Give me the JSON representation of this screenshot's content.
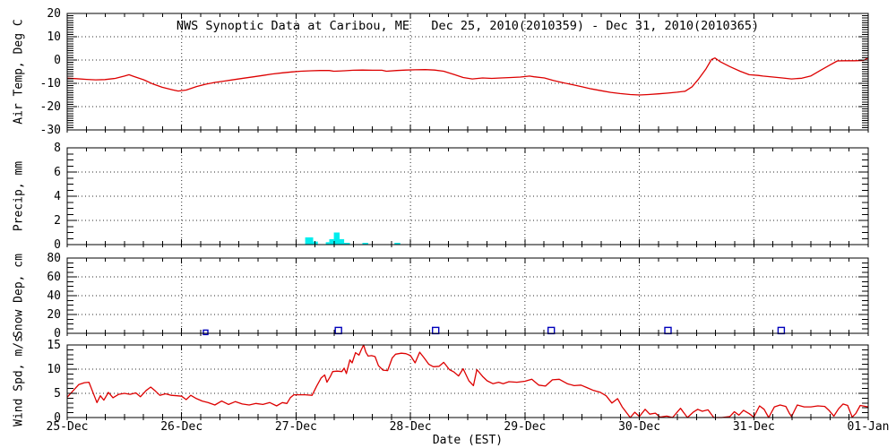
{
  "title": "NWS Synoptic Data at Caribou, ME   Dec 25, 2010(2010359) - Dec 31, 2010(2010365)",
  "x_axis": {
    "title": "Date (EST)",
    "labels": [
      "25-Dec",
      "26-Dec",
      "27-Dec",
      "28-Dec",
      "29-Dec",
      "30-Dec",
      "31-Dec",
      "01-Jan"
    ],
    "days": 7,
    "minor_ticks_per_day": 6
  },
  "chart_data": [
    {
      "type": "line",
      "name": "air-temp",
      "ylabel": "Air Temp, Deg C",
      "ylim": [
        -30,
        20
      ],
      "yticks": [
        -30,
        -20,
        -10,
        0,
        10,
        20
      ],
      "minor": 1,
      "grid": [
        -20,
        -10,
        0,
        10
      ],
      "color": "#dd0000",
      "points": [
        [
          0,
          -7.8
        ],
        [
          0.08,
          -8
        ],
        [
          0.17,
          -8.3
        ],
        [
          0.25,
          -8.5
        ],
        [
          0.33,
          -8.4
        ],
        [
          0.42,
          -7.9
        ],
        [
          0.5,
          -6.9
        ],
        [
          0.54,
          -6.3
        ],
        [
          0.58,
          -7
        ],
        [
          0.67,
          -8.5
        ],
        [
          0.75,
          -10.3
        ],
        [
          0.83,
          -11.7
        ],
        [
          0.92,
          -12.8
        ],
        [
          0.97,
          -13.3
        ],
        [
          1.04,
          -12.9
        ],
        [
          1.13,
          -11.4
        ],
        [
          1.21,
          -10.4
        ],
        [
          1.29,
          -9.6
        ],
        [
          1.38,
          -9
        ],
        [
          1.46,
          -8.4
        ],
        [
          1.54,
          -7.8
        ],
        [
          1.63,
          -7.2
        ],
        [
          1.71,
          -6.6
        ],
        [
          1.79,
          -6
        ],
        [
          1.88,
          -5.5
        ],
        [
          1.96,
          -5.1
        ],
        [
          2.04,
          -4.8
        ],
        [
          2.13,
          -4.6
        ],
        [
          2.21,
          -4.5
        ],
        [
          2.29,
          -4.5
        ],
        [
          2.33,
          -4.8
        ],
        [
          2.42,
          -4.6
        ],
        [
          2.5,
          -4.4
        ],
        [
          2.58,
          -4.3
        ],
        [
          2.67,
          -4.4
        ],
        [
          2.75,
          -4.4
        ],
        [
          2.79,
          -4.8
        ],
        [
          2.88,
          -4.5
        ],
        [
          2.96,
          -4.3
        ],
        [
          3.04,
          -4.2
        ],
        [
          3.13,
          -4.1
        ],
        [
          3.21,
          -4.3
        ],
        [
          3.29,
          -4.8
        ],
        [
          3.38,
          -6.2
        ],
        [
          3.46,
          -7.5
        ],
        [
          3.54,
          -8.1
        ],
        [
          3.63,
          -7.7
        ],
        [
          3.71,
          -7.9
        ],
        [
          3.79,
          -7.7
        ],
        [
          3.88,
          -7.5
        ],
        [
          3.96,
          -7.3
        ],
        [
          4.04,
          -6.9
        ],
        [
          4.08,
          -7.2
        ],
        [
          4.17,
          -7.7
        ],
        [
          4.25,
          -8.8
        ],
        [
          4.33,
          -9.7
        ],
        [
          4.42,
          -10.6
        ],
        [
          4.5,
          -11.5
        ],
        [
          4.58,
          -12.4
        ],
        [
          4.67,
          -13.2
        ],
        [
          4.75,
          -13.9
        ],
        [
          4.83,
          -14.4
        ],
        [
          4.92,
          -14.8
        ],
        [
          5,
          -15
        ],
        [
          5.08,
          -14.8
        ],
        [
          5.17,
          -14.5
        ],
        [
          5.25,
          -14.2
        ],
        [
          5.33,
          -13.8
        ],
        [
          5.4,
          -13.4
        ],
        [
          5.46,
          -11.5
        ],
        [
          5.52,
          -8
        ],
        [
          5.58,
          -4
        ],
        [
          5.63,
          0.2
        ],
        [
          5.66,
          0.9
        ],
        [
          5.71,
          -0.8
        ],
        [
          5.79,
          -2.8
        ],
        [
          5.88,
          -4.8
        ],
        [
          5.96,
          -6.3
        ],
        [
          6.04,
          -6.6
        ],
        [
          6.08,
          -6.9
        ],
        [
          6.17,
          -7.3
        ],
        [
          6.25,
          -7.7
        ],
        [
          6.33,
          -8.1
        ],
        [
          6.42,
          -7.8
        ],
        [
          6.5,
          -6.8
        ],
        [
          6.58,
          -4.5
        ],
        [
          6.67,
          -2
        ],
        [
          6.73,
          -0.4
        ],
        [
          6.79,
          -0.3
        ],
        [
          6.88,
          -0.3
        ],
        [
          6.96,
          -0.2
        ],
        [
          7,
          1
        ]
      ]
    },
    {
      "type": "bar",
      "name": "precip",
      "ylabel": "Precip, mm",
      "ylim": [
        0,
        8
      ],
      "yticks": [
        0,
        2,
        4,
        6,
        8
      ],
      "minor": 0.5,
      "grid": [
        2,
        4,
        6
      ],
      "color": "#00eded",
      "bars": [
        [
          2.08,
          2.15,
          0.6
        ],
        [
          2.15,
          2.19,
          0.25
        ],
        [
          2.26,
          2.29,
          0.2
        ],
        [
          2.29,
          2.33,
          0.45
        ],
        [
          2.33,
          2.38,
          1.0
        ],
        [
          2.38,
          2.42,
          0.45
        ],
        [
          2.42,
          2.47,
          0.15
        ],
        [
          2.58,
          2.63,
          0.15
        ],
        [
          2.86,
          2.91,
          0.15
        ]
      ]
    },
    {
      "type": "scatter",
      "name": "snow-depth",
      "ylabel": "Snow Dep, cm",
      "ylim": [
        0,
        80
      ],
      "yticks": [
        0,
        20,
        40,
        60,
        80
      ],
      "minor": 5,
      "grid": [
        20,
        40,
        60
      ],
      "color": "#0000bb",
      "points": [
        [
          1.21,
          1,
          5
        ],
        [
          2.37,
          3,
          7
        ],
        [
          3.22,
          3,
          7
        ],
        [
          4.23,
          3,
          7
        ],
        [
          5.25,
          3,
          7
        ],
        [
          6.24,
          3,
          7
        ]
      ]
    },
    {
      "type": "line",
      "name": "wind-speed",
      "ylabel": "Wind Spd, m/s",
      "ylim": [
        0,
        15
      ],
      "yticks": [
        0,
        5,
        10,
        15
      ],
      "minor": 1,
      "grid": [
        5,
        10
      ],
      "color": "#dd0000",
      "points": [
        [
          0,
          4.2
        ],
        [
          0.05,
          5.5
        ],
        [
          0.1,
          6.8
        ],
        [
          0.15,
          7.2
        ],
        [
          0.19,
          7.3
        ],
        [
          0.22,
          5.5
        ],
        [
          0.26,
          3.1
        ],
        [
          0.29,
          4.5
        ],
        [
          0.32,
          3.6
        ],
        [
          0.36,
          5.2
        ],
        [
          0.4,
          4.1
        ],
        [
          0.45,
          4.8
        ],
        [
          0.5,
          5
        ],
        [
          0.55,
          4.8
        ],
        [
          0.6,
          5.1
        ],
        [
          0.64,
          4.3
        ],
        [
          0.69,
          5.6
        ],
        [
          0.73,
          6.3
        ],
        [
          0.77,
          5.5
        ],
        [
          0.81,
          4.6
        ],
        [
          0.86,
          4.9
        ],
        [
          0.91,
          4.6
        ],
        [
          0.96,
          4.5
        ],
        [
          1,
          4.4
        ],
        [
          1.04,
          3.7
        ],
        [
          1.08,
          4.6
        ],
        [
          1.13,
          3.9
        ],
        [
          1.18,
          3.4
        ],
        [
          1.23,
          3.1
        ],
        [
          1.29,
          2.6
        ],
        [
          1.35,
          3.4
        ],
        [
          1.41,
          2.7
        ],
        [
          1.47,
          3.3
        ],
        [
          1.53,
          2.8
        ],
        [
          1.59,
          2.6
        ],
        [
          1.65,
          2.9
        ],
        [
          1.71,
          2.7
        ],
        [
          1.77,
          3.1
        ],
        [
          1.83,
          2.4
        ],
        [
          1.88,
          3.1
        ],
        [
          1.92,
          2.9
        ],
        [
          1.95,
          4.1
        ],
        [
          1.98,
          4.7
        ],
        [
          2.08,
          4.7
        ],
        [
          2.14,
          4.6
        ],
        [
          2.18,
          6.5
        ],
        [
          2.22,
          8.2
        ],
        [
          2.25,
          8.8
        ],
        [
          2.27,
          7.3
        ],
        [
          2.3,
          8.5
        ],
        [
          2.32,
          9.5
        ],
        [
          2.36,
          9.6
        ],
        [
          2.4,
          9.5
        ],
        [
          2.42,
          10.2
        ],
        [
          2.44,
          9.1
        ],
        [
          2.47,
          11.9
        ],
        [
          2.49,
          11.3
        ],
        [
          2.52,
          13.4
        ],
        [
          2.55,
          12.9
        ],
        [
          2.57,
          14
        ],
        [
          2.59,
          15
        ],
        [
          2.61,
          13.5
        ],
        [
          2.63,
          12.7
        ],
        [
          2.66,
          12.8
        ],
        [
          2.69,
          12.6
        ],
        [
          2.72,
          10.7
        ],
        [
          2.76,
          9.8
        ],
        [
          2.8,
          9.7
        ],
        [
          2.84,
          12.3
        ],
        [
          2.87,
          13.1
        ],
        [
          2.92,
          13.3
        ],
        [
          2.96,
          13.2
        ],
        [
          3,
          12.8
        ],
        [
          3.04,
          11.3
        ],
        [
          3.08,
          13.5
        ],
        [
          3.12,
          12.3
        ],
        [
          3.16,
          11
        ],
        [
          3.2,
          10.5
        ],
        [
          3.25,
          10.6
        ],
        [
          3.29,
          11.4
        ],
        [
          3.34,
          9.9
        ],
        [
          3.38,
          9.4
        ],
        [
          3.42,
          8.6
        ],
        [
          3.46,
          10.1
        ],
        [
          3.51,
          7.6
        ],
        [
          3.55,
          6.6
        ],
        [
          3.58,
          9.9
        ],
        [
          3.63,
          8.5
        ],
        [
          3.67,
          7.6
        ],
        [
          3.72,
          7
        ],
        [
          3.77,
          7.3
        ],
        [
          3.81,
          7
        ],
        [
          3.86,
          7.4
        ],
        [
          3.93,
          7.3
        ],
        [
          4,
          7.5
        ],
        [
          4.06,
          7.9
        ],
        [
          4.12,
          6.7
        ],
        [
          4.18,
          6.5
        ],
        [
          4.24,
          7.8
        ],
        [
          4.3,
          7.9
        ],
        [
          4.37,
          7
        ],
        [
          4.43,
          6.6
        ],
        [
          4.49,
          6.7
        ],
        [
          4.54,
          6.2
        ],
        [
          4.6,
          5.6
        ],
        [
          4.66,
          5.2
        ],
        [
          4.71,
          4.5
        ],
        [
          4.76,
          3
        ],
        [
          4.81,
          3.9
        ],
        [
          4.85,
          2.2
        ],
        [
          4.92,
          0
        ],
        [
          4.96,
          1.1
        ],
        [
          5,
          0.2
        ],
        [
          5.05,
          1.7
        ],
        [
          5.09,
          0.7
        ],
        [
          5.14,
          0.9
        ],
        [
          5.18,
          0.1
        ],
        [
          5.24,
          0.3
        ],
        [
          5.29,
          0
        ],
        [
          5.36,
          1.9
        ],
        [
          5.42,
          0
        ],
        [
          5.47,
          1.1
        ],
        [
          5.51,
          1.7
        ],
        [
          5.55,
          1.3
        ],
        [
          5.6,
          1.6
        ],
        [
          5.65,
          0
        ],
        [
          5.72,
          0
        ],
        [
          5.79,
          0.2
        ],
        [
          5.83,
          1.2
        ],
        [
          5.87,
          0.5
        ],
        [
          5.91,
          1.5
        ],
        [
          5.96,
          0.8
        ],
        [
          6,
          0.1
        ],
        [
          6.05,
          2.4
        ],
        [
          6.09,
          1.7
        ],
        [
          6.13,
          0
        ],
        [
          6.18,
          2.2
        ],
        [
          6.23,
          2.6
        ],
        [
          6.28,
          2.3
        ],
        [
          6.31,
          0.9
        ],
        [
          6.33,
          0.2
        ],
        [
          6.38,
          2.6
        ],
        [
          6.44,
          2.2
        ],
        [
          6.5,
          2.2
        ],
        [
          6.56,
          2.4
        ],
        [
          6.62,
          2.3
        ],
        [
          6.66,
          1.4
        ],
        [
          6.7,
          0.3
        ],
        [
          6.74,
          1.8
        ],
        [
          6.78,
          2.8
        ],
        [
          6.82,
          2.5
        ],
        [
          6.86,
          0.1
        ],
        [
          6.89,
          0.8
        ],
        [
          6.93,
          2.5
        ],
        [
          7,
          2.2
        ]
      ]
    }
  ]
}
